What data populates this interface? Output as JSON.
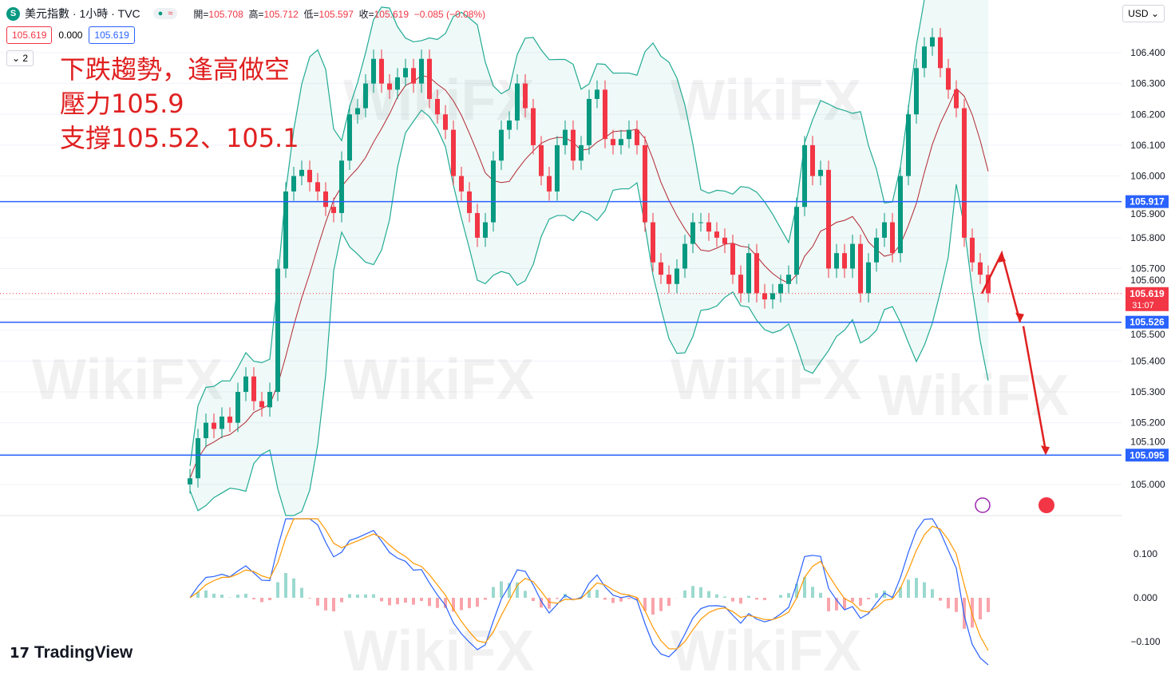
{
  "header": {
    "symbol_icon": "S",
    "title": "美元指數 · 1小時 · TVC",
    "status_icons": [
      "market-open-dot",
      "delay-icon"
    ],
    "open_label": "開=",
    "open": "105.708",
    "high_label": "高=",
    "high": "105.712",
    "low_label": "低=",
    "low": "105.597",
    "close_label": "收=",
    "close": "105.619",
    "change": "−0.085 (−0.08%)"
  },
  "bid": "105.619",
  "spread": "0.000",
  "ask": "105.619",
  "collapse_label": "2",
  "currency": "USD",
  "annotation": [
    "下跌趨勢，逢高做空",
    "壓力105.9",
    "支撐105.52、105.1"
  ],
  "brand": "TradingView",
  "watermark": "WikiFX",
  "colors": {
    "up": "#089981",
    "down": "#f23645",
    "level": "#2962ff",
    "arrow": "#e02020",
    "bb": "#22ab94",
    "ma": "#b22833",
    "macd": "#2962ff",
    "signal": "#ff9800"
  },
  "chart_data": {
    "type": "candlestick",
    "timeframe": "1小時",
    "price_ticks": [
      "106.400",
      "106.300",
      "106.200",
      "106.100",
      "106.000",
      "105.900",
      "105.800",
      "105.700",
      "105.600",
      "105.500",
      "105.400",
      "105.300",
      "105.200",
      "105.100",
      "105.000"
    ],
    "ylim": [
      104.93,
      106.55
    ],
    "levels": [
      {
        "value": 105.917,
        "label": "105.917"
      },
      {
        "value": 105.526,
        "label": "105.526"
      },
      {
        "value": 105.095,
        "label": "105.095"
      }
    ],
    "last_price": {
      "value": 105.619,
      "label": "105.619",
      "countdown": "31:07"
    },
    "closes": [
      105.02,
      105.15,
      105.2,
      105.18,
      105.22,
      105.2,
      105.3,
      105.35,
      105.27,
      105.25,
      105.3,
      105.7,
      105.95,
      106.0,
      106.02,
      105.98,
      105.95,
      105.9,
      105.88,
      106.05,
      106.2,
      106.22,
      106.3,
      106.38,
      106.3,
      106.28,
      106.32,
      106.35,
      106.3,
      106.38,
      106.25,
      106.2,
      106.15,
      106.0,
      105.95,
      105.88,
      105.8,
      105.85,
      106.05,
      106.15,
      106.18,
      106.3,
      106.22,
      106.1,
      106.0,
      105.95,
      106.1,
      106.15,
      106.05,
      106.1,
      106.25,
      106.28,
      106.12,
      106.1,
      106.12,
      106.15,
      106.1,
      105.85,
      105.72,
      105.68,
      105.65,
      105.7,
      105.78,
      105.85,
      105.85,
      105.82,
      105.8,
      105.78,
      105.68,
      105.62,
      105.75,
      105.62,
      105.6,
      105.62,
      105.65,
      105.68,
      105.9,
      106.1,
      106.0,
      106.02,
      105.7,
      105.75,
      105.7,
      105.78,
      105.62,
      105.72,
      105.8,
      105.85,
      105.75,
      106.0,
      106.2,
      106.35,
      106.42,
      106.45,
      106.35,
      106.28,
      106.22,
      105.8,
      105.72,
      105.68,
      105.62
    ],
    "macd_ticks": [
      "0.100",
      "0.000",
      "−0.100"
    ],
    "projection": [
      105.619,
      105.75,
      105.526,
      105.095
    ]
  }
}
